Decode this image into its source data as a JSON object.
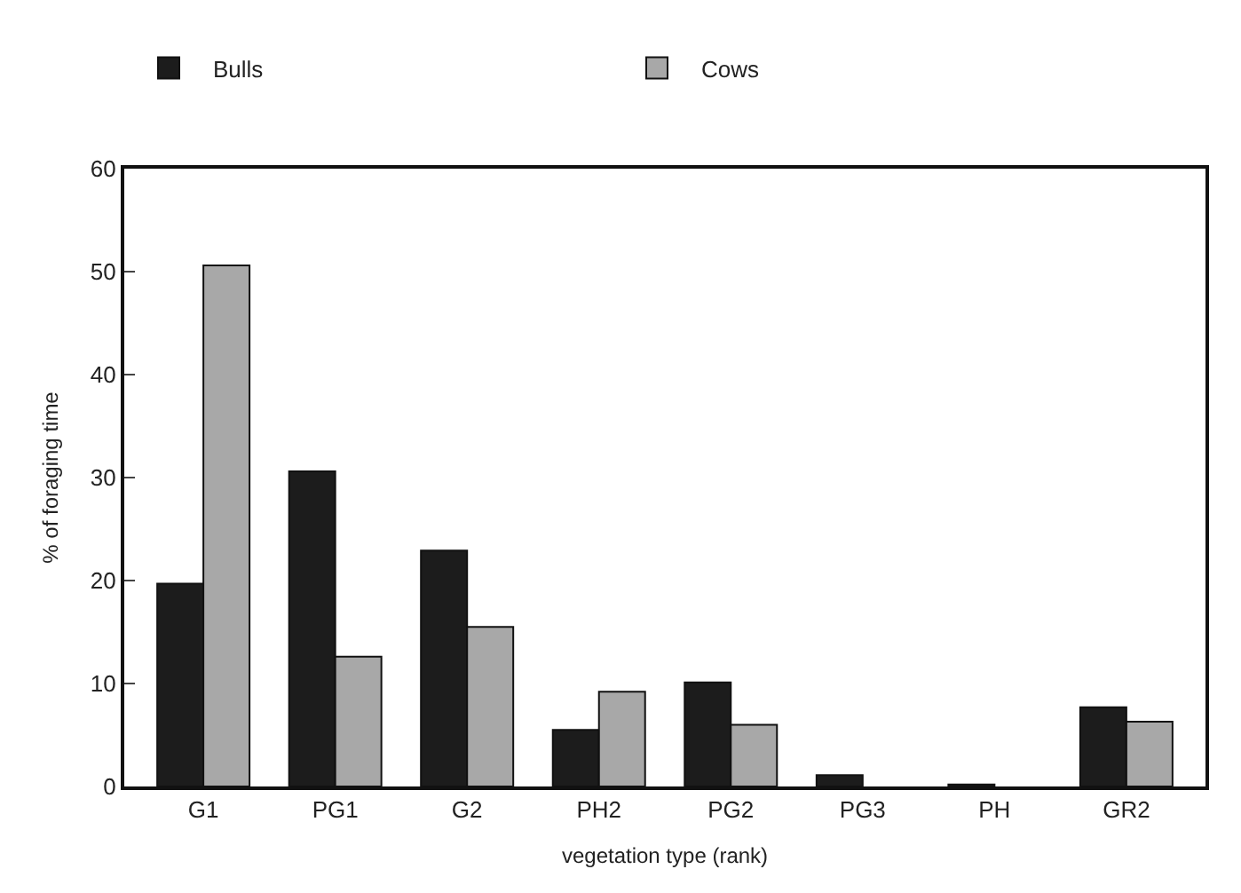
{
  "chart_data": {
    "type": "bar",
    "xlabel": "vegetation type (rank)",
    "ylabel": "% of foraging time",
    "categories": [
      "G1",
      "PG1",
      "G2",
      "PH2",
      "PG2",
      "PG3",
      "PH",
      "GR2"
    ],
    "series": [
      {
        "name": "Bulls",
        "color": "#1c1c1c",
        "values": [
          19.7,
          30.6,
          22.9,
          5.5,
          10.1,
          1.1,
          0.2,
          7.7
        ]
      },
      {
        "name": "Cows",
        "color": "#a8a8a8",
        "values": [
          50.6,
          12.6,
          15.5,
          9.2,
          6.0,
          null,
          null,
          6.3
        ]
      }
    ],
    "ylim": [
      0,
      60
    ],
    "yticks": [
      0,
      10,
      20,
      30,
      40,
      50,
      60
    ],
    "legend": "top"
  }
}
